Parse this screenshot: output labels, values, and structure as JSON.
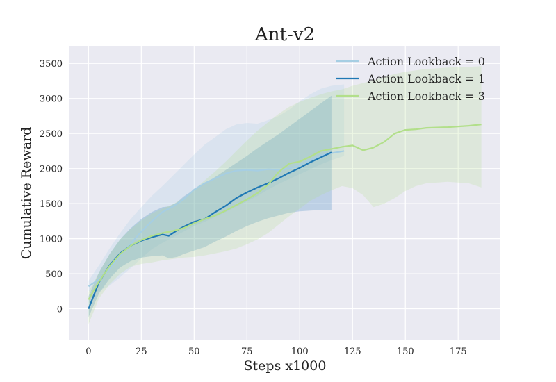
{
  "chart_data": {
    "type": "line",
    "title": "Ant-v2",
    "xlabel": "Steps x1000",
    "ylabel": "Cumulative Reward",
    "xlim": [
      -9,
      195
    ],
    "ylim": [
      -450,
      3750
    ],
    "xticks": [
      0,
      25,
      50,
      75,
      100,
      125,
      150,
      175
    ],
    "yticks": [
      0,
      500,
      1000,
      1500,
      2000,
      2500,
      3000,
      3500
    ],
    "grid": true,
    "legend_position": "upper-right",
    "plot_background": "#eaeaf2",
    "series": [
      {
        "name": "Action Lookback = 0",
        "color": "#a6cee3",
        "x": [
          0,
          5,
          10,
          15,
          20,
          25,
          30,
          35,
          40,
          45,
          50,
          55,
          60,
          65,
          70,
          75,
          80,
          85,
          90,
          95,
          100,
          105,
          110,
          115,
          121
        ],
        "y": [
          320,
          420,
          570,
          760,
          930,
          1100,
          1250,
          1380,
          1460,
          1560,
          1700,
          1790,
          1860,
          1930,
          1970,
          1980,
          1970,
          1990,
          1980,
          2000,
          2050,
          2120,
          2190,
          2220,
          2250
        ],
        "band_upper": [
          400,
          620,
          860,
          1080,
          1280,
          1450,
          1610,
          1750,
          1900,
          2050,
          2200,
          2340,
          2450,
          2560,
          2630,
          2650,
          2640,
          2690,
          2750,
          2840,
          2960,
          3060,
          3140,
          3180,
          3200
        ],
        "band_lower": [
          250,
          250,
          330,
          450,
          580,
          720,
          850,
          940,
          1020,
          1100,
          1180,
          1240,
          1310,
          1380,
          1460,
          1530,
          1610,
          1700,
          1780,
          1850,
          1920,
          1990,
          2060,
          2120,
          2180
        ]
      },
      {
        "name": "Action Lookback = 1",
        "color": "#1f78b4",
        "x": [
          0,
          5,
          10,
          15,
          20,
          25,
          30,
          35,
          38,
          42,
          45,
          50,
          55,
          60,
          65,
          70,
          75,
          80,
          85,
          90,
          95,
          100,
          105,
          110,
          115
        ],
        "y": [
          0,
          380,
          620,
          790,
          900,
          970,
          1020,
          1060,
          1040,
          1120,
          1170,
          1240,
          1280,
          1380,
          1470,
          1580,
          1660,
          1730,
          1790,
          1860,
          1940,
          2010,
          2090,
          2160,
          2230
        ],
        "band_upper": [
          180,
          520,
          780,
          990,
          1150,
          1280,
          1380,
          1450,
          1460,
          1520,
          1600,
          1700,
          1780,
          1880,
          1980,
          2080,
          2180,
          2290,
          2390,
          2490,
          2600,
          2710,
          2820,
          2930,
          3040
        ],
        "band_lower": [
          -120,
          220,
          430,
          590,
          680,
          730,
          750,
          760,
          720,
          740,
          780,
          830,
          880,
          960,
          1030,
          1110,
          1180,
          1240,
          1290,
          1330,
          1370,
          1390,
          1400,
          1410,
          1410
        ]
      },
      {
        "name": "Action Lookback = 3",
        "color": "#b2df8a",
        "x": [
          0,
          5,
          10,
          15,
          20,
          25,
          30,
          35,
          40,
          45,
          50,
          55,
          60,
          65,
          70,
          75,
          80,
          85,
          90,
          95,
          100,
          105,
          110,
          115,
          120,
          125,
          130,
          135,
          140,
          145,
          150,
          155,
          160,
          170,
          180,
          186
        ],
        "y": [
          130,
          390,
          610,
          780,
          900,
          980,
          1040,
          1080,
          1110,
          1150,
          1220,
          1280,
          1330,
          1400,
          1480,
          1560,
          1650,
          1770,
          1950,
          2070,
          2100,
          2170,
          2250,
          2280,
          2310,
          2330,
          2260,
          2300,
          2380,
          2500,
          2550,
          2560,
          2580,
          2590,
          2610,
          2630
        ],
        "band_upper": [
          240,
          520,
          780,
          990,
          1140,
          1260,
          1360,
          1430,
          1490,
          1580,
          1700,
          1830,
          1960,
          2100,
          2250,
          2400,
          2540,
          2660,
          2780,
          2880,
          2950,
          3010,
          3060,
          3100,
          3130,
          3180,
          3220,
          3260,
          3300,
          3350,
          3380,
          3400,
          3420,
          3440,
          3450,
          3460
        ],
        "band_lower": [
          -220,
          150,
          350,
          500,
          600,
          640,
          660,
          690,
          710,
          730,
          740,
          760,
          790,
          820,
          860,
          920,
          990,
          1080,
          1200,
          1320,
          1430,
          1540,
          1620,
          1690,
          1750,
          1720,
          1620,
          1450,
          1500,
          1580,
          1680,
          1750,
          1790,
          1810,
          1790,
          1730
        ]
      }
    ]
  }
}
